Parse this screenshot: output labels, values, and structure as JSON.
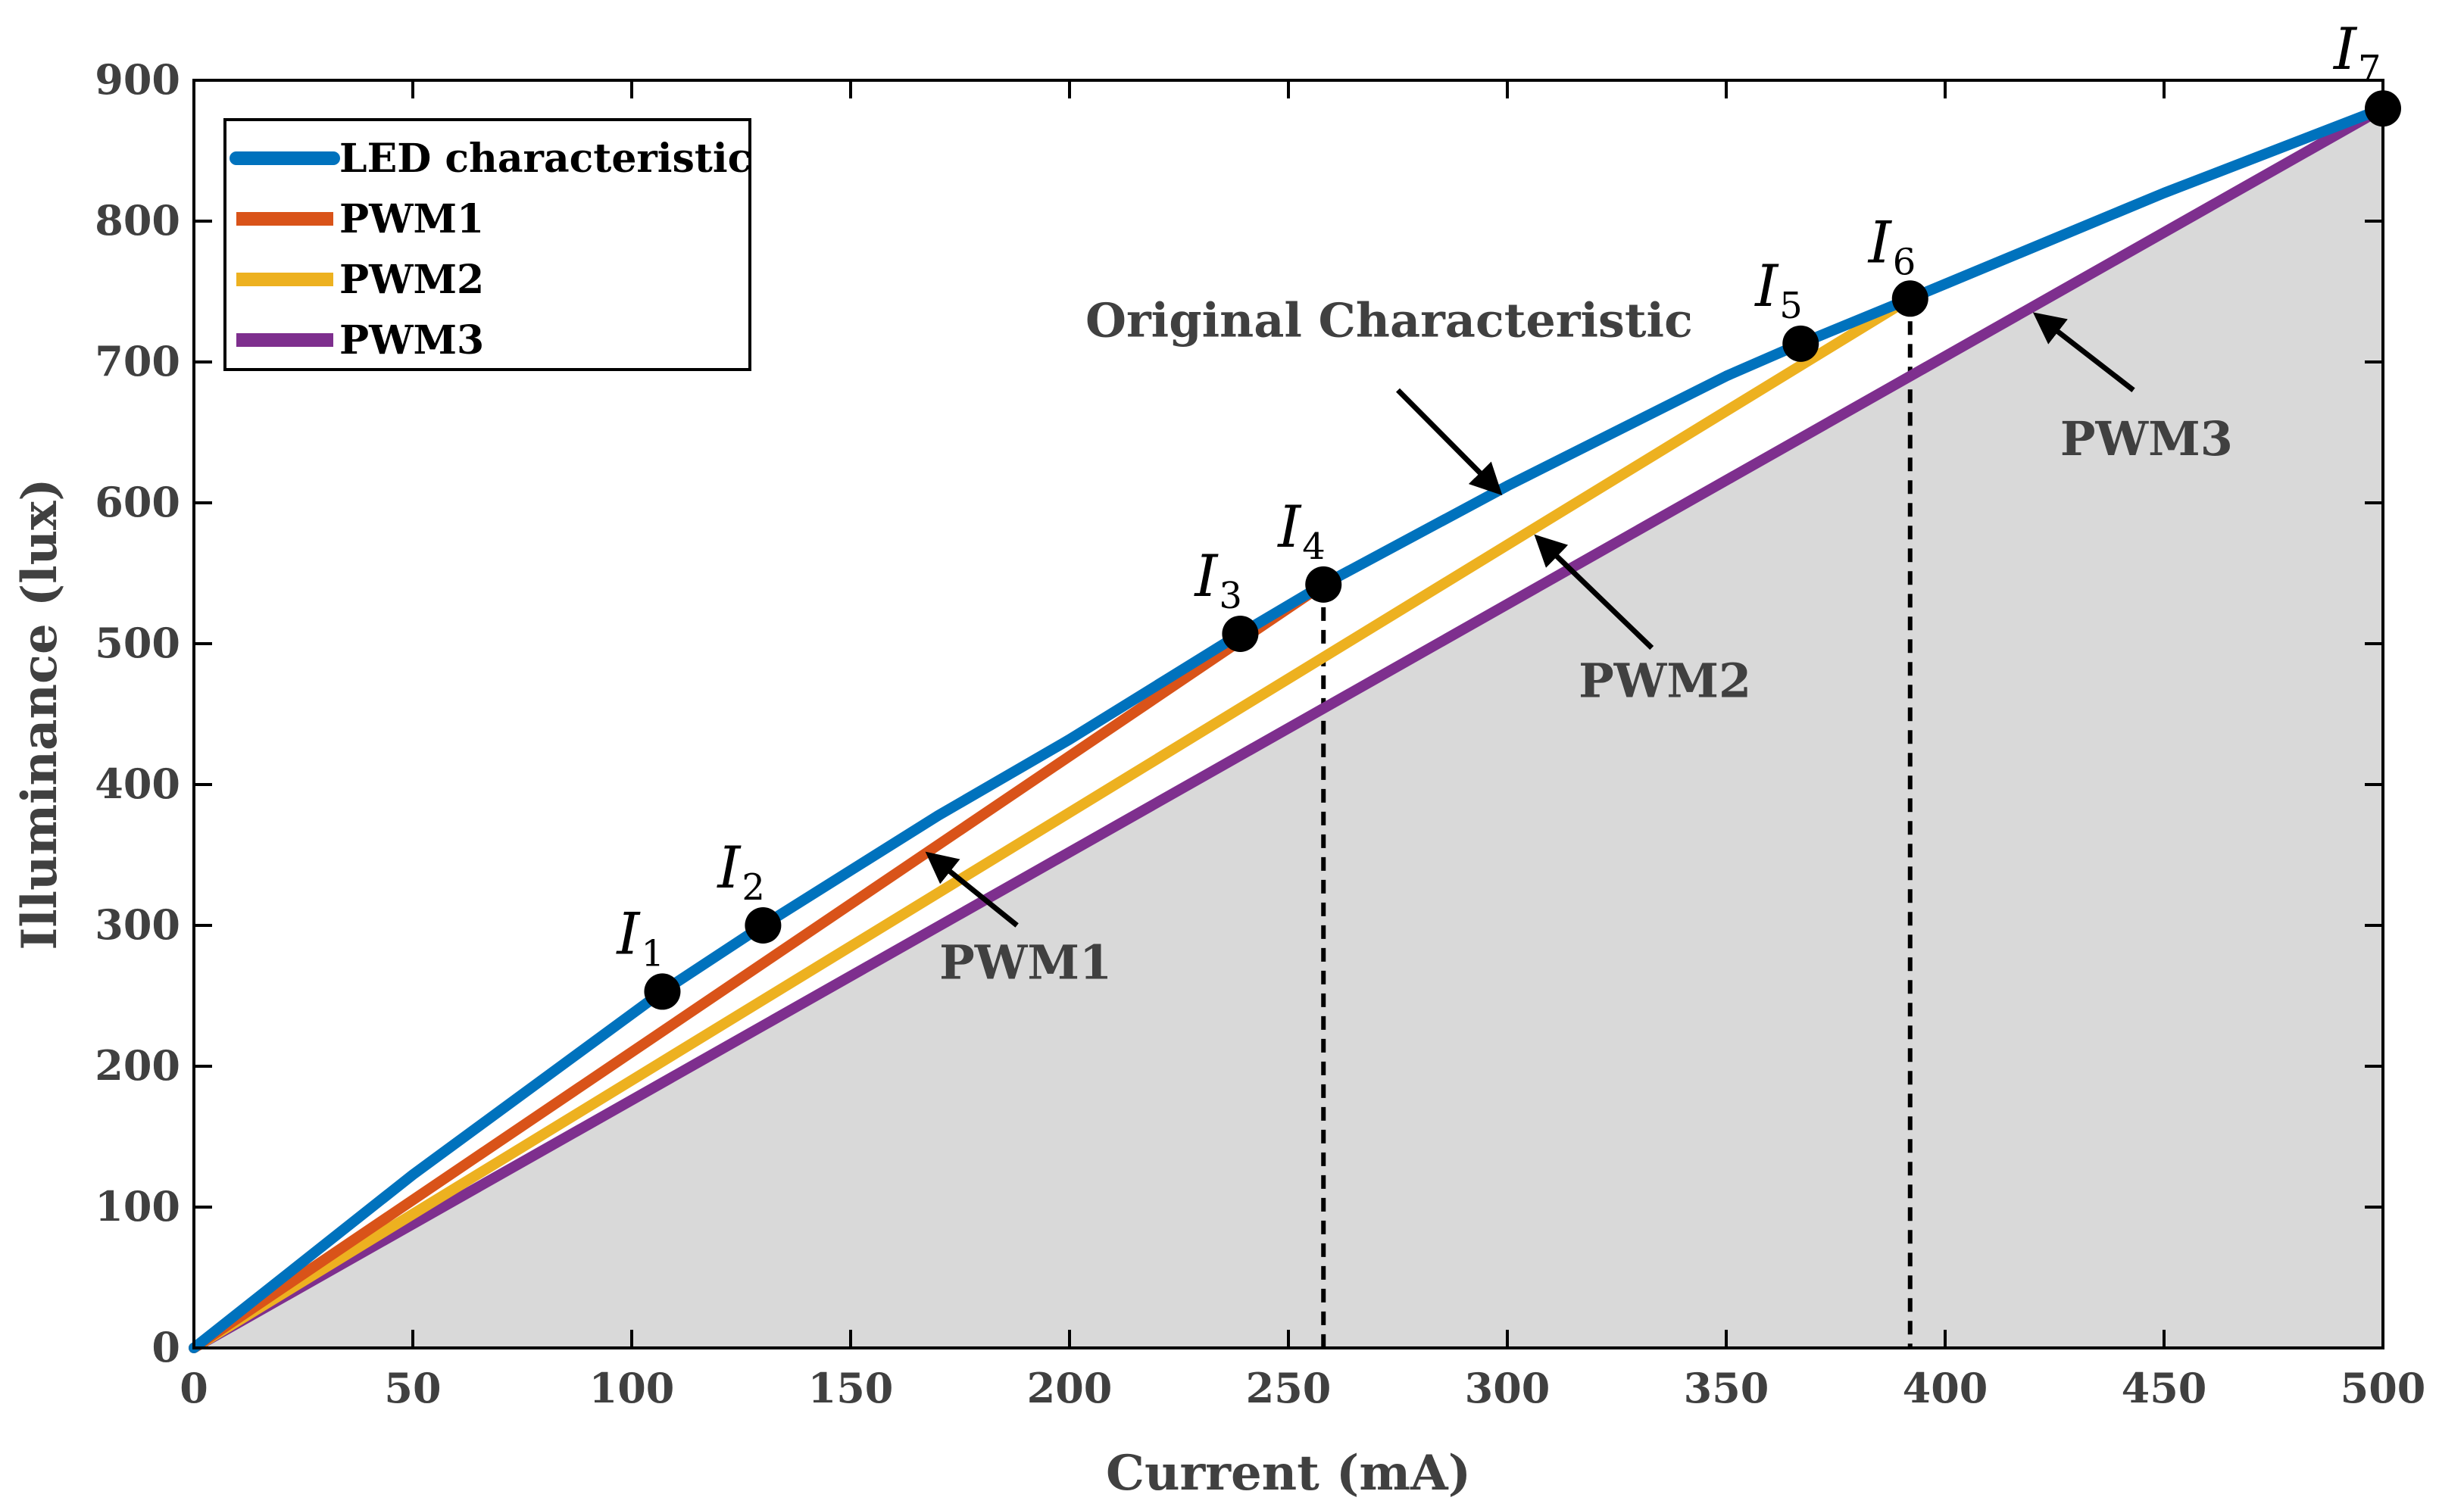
{
  "chart_data": {
    "type": "line",
    "xlabel": "Current (mA)",
    "ylabel": "Illuminance (lux)",
    "xlim": [
      0,
      500
    ],
    "ylim": [
      0,
      900
    ],
    "xticks": [
      0,
      50,
      100,
      150,
      200,
      250,
      300,
      350,
      400,
      450,
      500
    ],
    "yticks": [
      0,
      100,
      200,
      300,
      400,
      500,
      600,
      700,
      800,
      900
    ],
    "grid": false,
    "shaded_region": "area under PWM3",
    "legend": {
      "position": "top-left"
    },
    "series": [
      {
        "name": "LED characteristic",
        "color": "#0072BD",
        "x": [
          0,
          50,
          107,
          130,
          170,
          200,
          239,
          258,
          300,
          350,
          367,
          392,
          450,
          500
        ],
        "y": [
          0,
          123,
          253,
          300,
          378,
          432,
          507,
          542,
          612,
          690,
          713,
          745,
          820,
          880
        ]
      },
      {
        "name": "PWM1",
        "color": "#D95319",
        "x": [
          0,
          258
        ],
        "y": [
          0,
          542
        ]
      },
      {
        "name": "PWM2",
        "color": "#EDB120",
        "x": [
          0,
          392
        ],
        "y": [
          0,
          745
        ]
      },
      {
        "name": "PWM3",
        "color": "#7E2F8E",
        "x": [
          0,
          500
        ],
        "y": [
          0,
          880
        ]
      }
    ],
    "points": [
      {
        "label": "I",
        "sub": "1",
        "x": 107,
        "y": 253
      },
      {
        "label": "I",
        "sub": "2",
        "x": 130,
        "y": 300
      },
      {
        "label": "I",
        "sub": "3",
        "x": 239,
        "y": 507
      },
      {
        "label": "I",
        "sub": "4",
        "x": 258,
        "y": 542
      },
      {
        "label": "I",
        "sub": "5",
        "x": 367,
        "y": 713
      },
      {
        "label": "I",
        "sub": "6",
        "x": 392,
        "y": 745
      },
      {
        "label": "I",
        "sub": "7",
        "x": 500,
        "y": 880
      }
    ],
    "vlines": [
      {
        "x": 258,
        "y_top": 542
      },
      {
        "x": 392,
        "y_top": 745
      }
    ],
    "annotations": [
      {
        "text": "Original Characteristic",
        "text_x": 273,
        "text_y": 718,
        "arrow_from": [
          275,
          680
        ],
        "arrow_to": [
          298,
          608
        ]
      },
      {
        "text": "PWM1",
        "text_x": 190,
        "text_y": 262,
        "arrow_from": [
          188,
          300
        ],
        "arrow_to": [
          168,
          350
        ]
      },
      {
        "text": "PWM2",
        "text_x": 336,
        "text_y": 462,
        "arrow_from": [
          333,
          497
        ],
        "arrow_to": [
          307,
          575
        ]
      },
      {
        "text": "PWM3",
        "text_x": 446,
        "text_y": 634,
        "arrow_from": [
          443,
          680
        ],
        "arrow_to": [
          421,
          733
        ]
      }
    ]
  }
}
